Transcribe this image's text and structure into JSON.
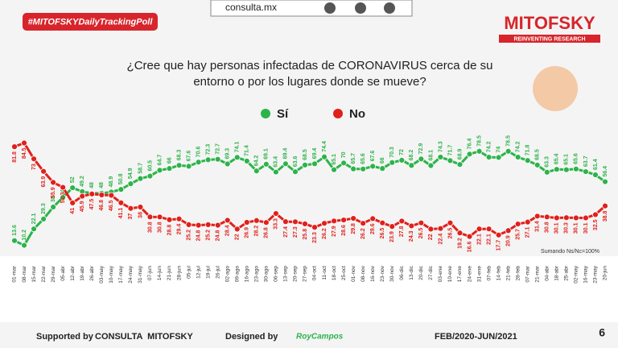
{
  "header": {
    "hashtag": "#MITOFSKYDailyTrackingPoll",
    "site": "consulta.mx",
    "brand": "MITOFSKY",
    "tagline": "REINVENTING RESEARCH"
  },
  "chart_data": {
    "type": "line",
    "title": "¿Cree que hay personas infectadas de CORONAVIRUS cerca de su entorno o por los lugares donde se mueve?",
    "categories": [
      "01-mar",
      "08-mar",
      "15-mar",
      "22-mar",
      "29-mar",
      "05-abr",
      "12-abr",
      "19-abr",
      "26-abr",
      "03-may",
      "10-may",
      "17-may",
      "24-may",
      "31-may",
      "07-jun",
      "14-jun",
      "21-jun",
      "28-jun",
      "05-jul",
      "12-jul",
      "19-jul",
      "26-jul",
      "02-ago",
      "09-ago",
      "16-ago",
      "23-ago",
      "30-ago",
      "06-sep",
      "13-sep",
      "20-sep",
      "27-sep",
      "04-oct",
      "11-oct",
      "18-oct",
      "25-oct",
      "01-nov",
      "08-nov",
      "16-nov",
      "23-nov",
      "30-nov",
      "06-dic",
      "13-dic",
      "20-dic",
      "27-dic",
      "03-ene",
      "10-ene",
      "17-ene",
      "24-ene",
      "31-ene",
      "07-feb",
      "14-feb",
      "21-feb",
      "28-feb",
      "07-mar",
      "21-mar",
      "04-abr",
      "18-abr",
      "25-abr",
      "02-may",
      "16-may",
      "23-may",
      "20-jun"
    ],
    "series": [
      {
        "name": "Sí",
        "color": "#2db34a",
        "values": [
          13.6,
          10.2,
          22.1,
          29.3,
          38.0,
          45.0,
          52.0,
          49.2,
          48.0,
          48.0,
          48.9,
          50.8,
          54.9,
          58.7,
          60.5,
          64.7,
          66.0,
          68.3,
          67.6,
          70.6,
          72.3,
          72.7,
          69.3,
          74.1,
          71.4,
          64.2,
          69.1,
          63.4,
          69.4,
          63.6,
          68.5,
          69.4,
          74.4,
          65.1,
          70.0,
          65.7,
          65.6,
          67.6,
          66.0,
          70.3,
          72.0,
          68.2,
          72.9,
          68.1,
          74.3,
          71.7,
          68.9,
          76.4,
          78.5,
          74.2,
          74.0,
          78.5,
          74.2,
          71.8,
          68.5,
          63.3,
          65.4,
          65.1,
          65.6,
          63.7,
          61.4,
          56.4
        ]
      },
      {
        "name": "No",
        "color": "#e0201b",
        "values": [
          81.8,
          84.5,
          73.0,
          63.9,
          55.9,
          52.3,
          41.0,
          45.9,
          47.5,
          46.8,
          46.5,
          41.1,
          37.0,
          38.0,
          30.8,
          30.8,
          28.8,
          29.4,
          25.2,
          24.8,
          25.2,
          24.8,
          28.4,
          22.0,
          26.9,
          28.2,
          26.8,
          33.3,
          27.4,
          27.3,
          25.8,
          23.3,
          26.2,
          27.9,
          28.6,
          29.8,
          26.2,
          29.6,
          26.5,
          23.9,
          27.8,
          24.3,
          26.5,
          22.0,
          22.4,
          26.5,
          19.2,
          16.6,
          22.1,
          22.1,
          17.7,
          20.9,
          25.7,
          27.1,
          31.4,
          30.8,
          30.1,
          30.3,
          30.1,
          30.1,
          32.5,
          38.8
        ]
      }
    ],
    "ylim": [
      0,
      100
    ],
    "note": "Sumando Ns/Nc=100%"
  },
  "footer": {
    "supported_label": "Supported by",
    "supported_name": "CONSULTA  MITOFSKY",
    "designed_label": "Designed by",
    "designer": "RoyCampos",
    "period": "FEB/2020-JUN/2021",
    "page": "6"
  }
}
